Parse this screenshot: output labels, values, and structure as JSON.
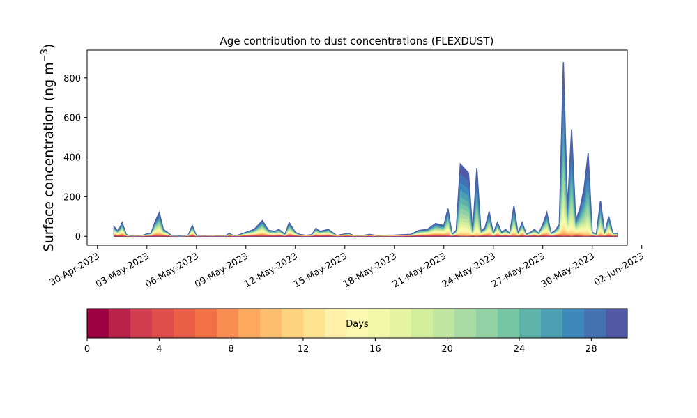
{
  "chart_data": {
    "type": "area",
    "stacked": true,
    "title": "Age contribution to dust concentrations (FLEXDUST)",
    "ylabel_main": "Surface concentration (ng m",
    "ylabel_sup": "−3",
    "ylabel_close": ")",
    "xlabel": "",
    "ylim": [
      -45,
      940
    ],
    "yticks": [
      0,
      200,
      400,
      600,
      800
    ],
    "xlim": [
      "2023-04-29T09:00",
      "2023-06-01T03:00"
    ],
    "xticks": [
      "2023-04-30",
      "2023-05-03",
      "2023-05-06",
      "2023-05-09",
      "2023-05-12",
      "2023-05-15",
      "2023-05-18",
      "2023-05-21",
      "2023-05-24",
      "2023-05-27",
      "2023-05-30",
      "2023-06-02"
    ],
    "xtick_labels": [
      "30-Apr-2023",
      "03-May-2023",
      "06-May-2023",
      "09-May-2023",
      "12-May-2023",
      "15-May-2023",
      "18-May-2023",
      "21-May-2023",
      "24-May-2023",
      "27-May-2023",
      "30-May-2023",
      "02-Jun-2023"
    ],
    "grid": false,
    "total_series": {
      "name": "total",
      "x": [
        "2023-05-01T00:00",
        "2023-05-01T06:00",
        "2023-05-01T12:00",
        "2023-05-01T18:00",
        "2023-05-02T00:00",
        "2023-05-02T06:00",
        "2023-05-02T12:00",
        "2023-05-02T18:00",
        "2023-05-03T00:00",
        "2023-05-03T06:00",
        "2023-05-03T12:00",
        "2023-05-03T18:00",
        "2023-05-04T00:00",
        "2023-05-04T06:00",
        "2023-05-04T12:00",
        "2023-05-04T18:00",
        "2023-05-05T00:00",
        "2023-05-05T06:00",
        "2023-05-05T12:00",
        "2023-05-05T18:00",
        "2023-05-06T00:00",
        "2023-05-06T12:00",
        "2023-05-07T00:00",
        "2023-05-07T09:00",
        "2023-05-07T18:00",
        "2023-05-08T00:00",
        "2023-05-08T06:00",
        "2023-05-08T12:00",
        "2023-05-09T00:00",
        "2023-05-09T12:00",
        "2023-05-10T00:00",
        "2023-05-10T09:00",
        "2023-05-10T18:00",
        "2023-05-11T00:00",
        "2023-05-11T09:00",
        "2023-05-11T15:00",
        "2023-05-12T00:00",
        "2023-05-12T06:00",
        "2023-05-12T15:00",
        "2023-05-13T00:00",
        "2023-05-13T06:00",
        "2023-05-13T12:00",
        "2023-05-14T00:00",
        "2023-05-14T12:00",
        "2023-05-14T18:00",
        "2023-05-15T06:00",
        "2023-05-15T12:00",
        "2023-05-16T00:00",
        "2023-05-16T12:00",
        "2023-05-17T00:00",
        "2023-05-17T12:00",
        "2023-05-18T00:00",
        "2023-05-18T12:00",
        "2023-05-19T00:00",
        "2023-05-19T12:00",
        "2023-05-20T00:00",
        "2023-05-20T12:00",
        "2023-05-21T00:00",
        "2023-05-21T06:00",
        "2023-05-21T12:00",
        "2023-05-21T18:00",
        "2023-05-22T00:00",
        "2023-05-22T12:00",
        "2023-05-22T18:00",
        "2023-05-23T00:00",
        "2023-05-23T06:00",
        "2023-05-23T12:00",
        "2023-05-23T18:00",
        "2023-05-24T00:00",
        "2023-05-24T06:00",
        "2023-05-24T12:00",
        "2023-05-24T18:00",
        "2023-05-25T00:00",
        "2023-05-25T06:00",
        "2023-05-25T12:00",
        "2023-05-25T18:00",
        "2023-05-26T00:00",
        "2023-05-26T06:00",
        "2023-05-26T12:00",
        "2023-05-26T18:00",
        "2023-05-27T00:00",
        "2023-05-27T06:00",
        "2023-05-27T12:00",
        "2023-05-27T18:00",
        "2023-05-28T00:00",
        "2023-05-28T06:00",
        "2023-05-28T12:00",
        "2023-05-28T18:00",
        "2023-05-29T00:00",
        "2023-05-29T06:00",
        "2023-05-29T12:00",
        "2023-05-29T18:00",
        "2023-05-30T00:00",
        "2023-05-30T06:00",
        "2023-05-30T12:00",
        "2023-05-30T18:00",
        "2023-05-31T00:00",
        "2023-05-31T06:00",
        "2023-05-31T12:00"
      ],
      "values": [
        50,
        25,
        70,
        8,
        3,
        2,
        3,
        5,
        12,
        15,
        75,
        120,
        35,
        20,
        3,
        2,
        1,
        2,
        5,
        55,
        2,
        3,
        4,
        3,
        2,
        15,
        3,
        5,
        20,
        35,
        80,
        30,
        25,
        35,
        10,
        70,
        20,
        10,
        5,
        8,
        40,
        25,
        35,
        4,
        8,
        15,
        5,
        3,
        10,
        3,
        5,
        6,
        8,
        10,
        30,
        35,
        65,
        55,
        140,
        10,
        30,
        365,
        320,
        20,
        345,
        25,
        45,
        125,
        15,
        70,
        20,
        35,
        15,
        155,
        15,
        70,
        10,
        20,
        35,
        15,
        60,
        120,
        15,
        30,
        60,
        880,
        140,
        540,
        80,
        140,
        240,
        420,
        20,
        10,
        180,
        15,
        100,
        15,
        15
      ]
    },
    "breakdown": {
      "series_x_days": [
        "2023-05-20T18:00",
        "2023-05-21T06:00",
        "2023-05-21T18:00",
        "2023-05-22T00:00",
        "2023-05-22T18:00",
        "2023-05-23T00:00",
        "2023-05-23T18:00",
        "2023-05-24T12:00",
        "2023-05-25T06:00",
        "2023-05-26T00:00",
        "2023-05-26T18:00",
        "2023-05-27T18:00",
        "2023-05-28T12:00",
        "2023-05-29T06:00",
        "2023-05-29T18:00",
        "2023-05-30T12:00",
        "2023-05-31T00:00"
      ],
      "note": ""
    },
    "colorbar": {
      "label": "Days",
      "min": 0,
      "max": 30,
      "ticks": [
        0,
        4,
        8,
        12,
        16,
        20,
        24,
        28
      ],
      "colors": [
        "#9e0142",
        "#bb2249",
        "#d33c4e",
        "#e14d4a",
        "#ea5e47",
        "#f47045",
        "#f88c51",
        "#fca95e",
        "#fdbf6f",
        "#fed27f",
        "#fee391",
        "#fef0a6",
        "#fbf8b0",
        "#f1f9a9",
        "#e4f4a0",
        "#d3ee9b",
        "#bfe5a0",
        "#a9dca4",
        "#91d1a4",
        "#76c6a5",
        "#5db3aa",
        "#4b9fb3",
        "#3d89bc",
        "#4272b2",
        "#5159a6"
      ]
    }
  }
}
